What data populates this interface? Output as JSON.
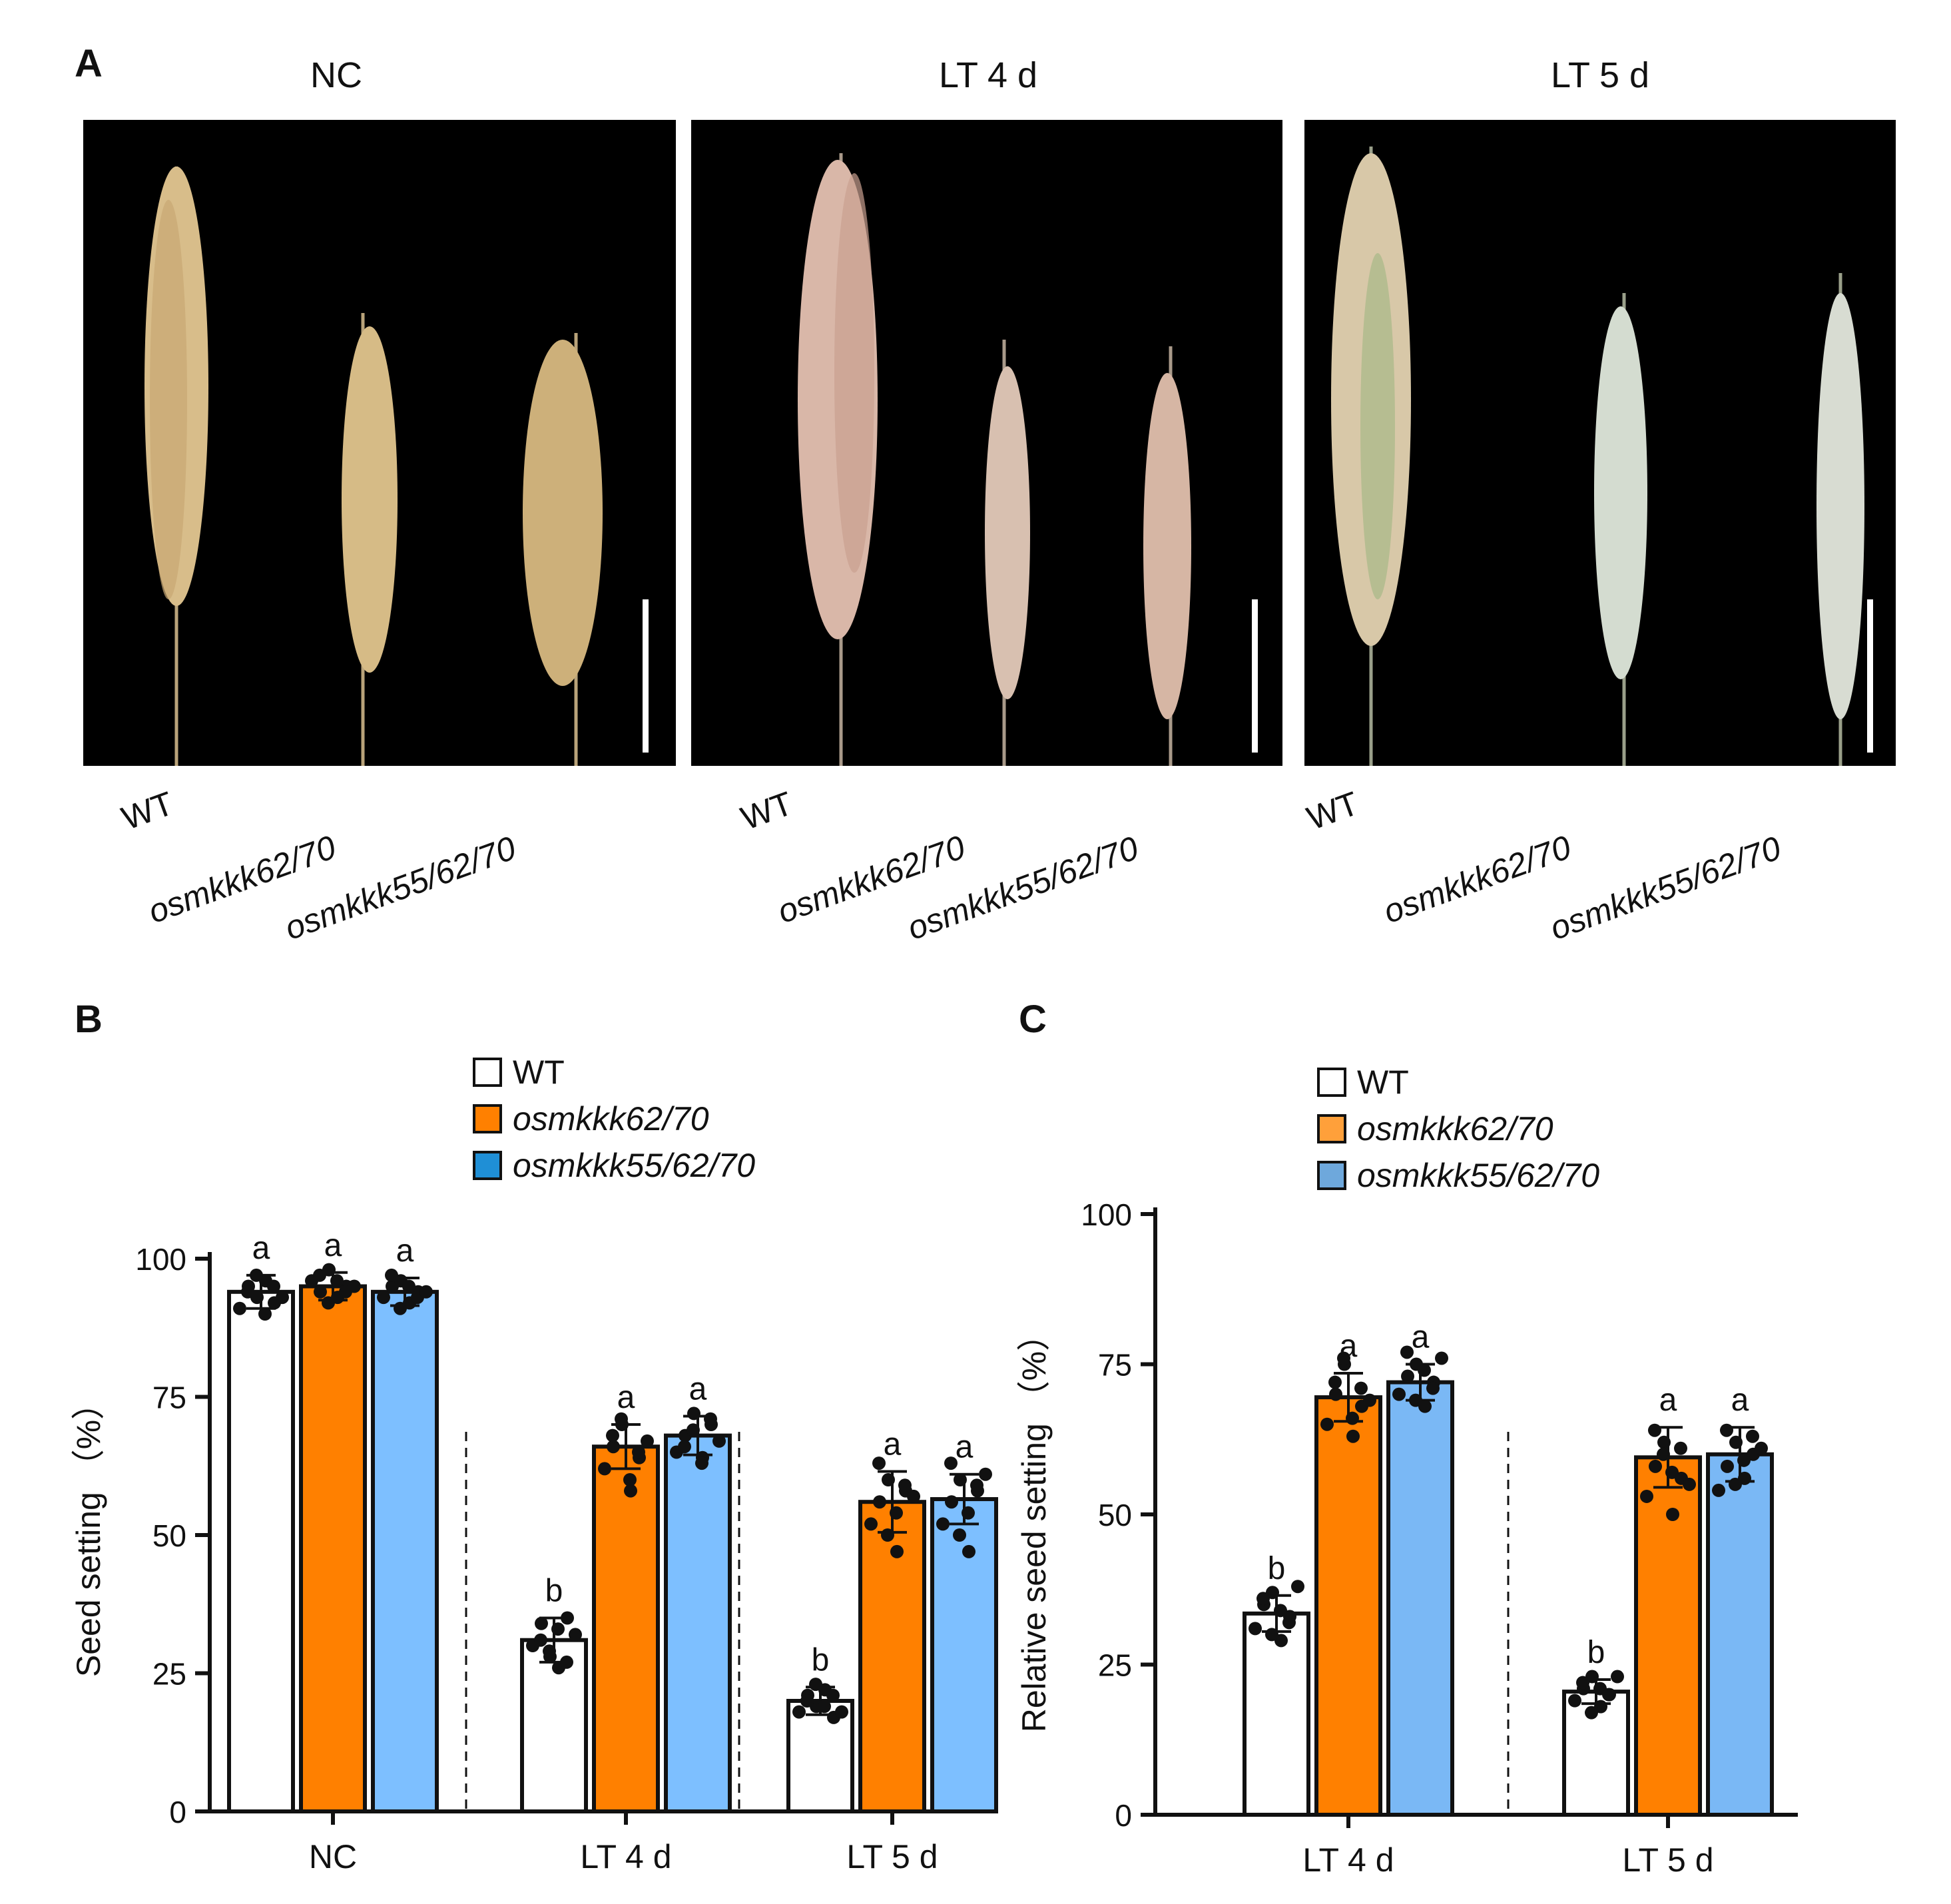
{
  "panel_a": {
    "letter": "A",
    "conditions": [
      "NC",
      "LT 4 d",
      "LT 5 d"
    ],
    "genotype_labels": [
      "WT",
      "osmkkk62/70",
      "osmkkk55/62/70"
    ]
  },
  "panel_b": {
    "letter": "B",
    "legend": [
      "WT",
      "osmkkk62/70",
      "osmkkk55/62/70"
    ]
  },
  "panel_c": {
    "letter": "C",
    "legend": [
      "WT",
      "osmkkk62/70",
      "osmkkk55/62/70"
    ]
  },
  "colors": {
    "wt": "#ffffff",
    "double": "#ff8000",
    "triple_b": "#7dbfff",
    "triple_c": "#7ab8f5",
    "axis": "#111111"
  },
  "chart_data": [
    {
      "type": "bar",
      "panel": "B",
      "ylabel": "Seed setting （%）",
      "ylim": [
        0,
        100
      ],
      "yticks": [
        0,
        25,
        50,
        75,
        100
      ],
      "categories": [
        "NC",
        "LT 4 d",
        "LT 5 d"
      ],
      "series": [
        {
          "name": "WT",
          "values": [
            94,
            31,
            20
          ],
          "sd": [
            3,
            4,
            2.5
          ],
          "letters": [
            "a",
            "b",
            "b"
          ]
        },
        {
          "name": "osmkkk62/70",
          "values": [
            95,
            66,
            56
          ],
          "sd": [
            2.5,
            4,
            5.5
          ],
          "letters": [
            "a",
            "a",
            "a"
          ]
        },
        {
          "name": "osmkkk55/62/70",
          "values": [
            94,
            68,
            56.5
          ],
          "sd": [
            2.5,
            3.5,
            4.5
          ],
          "letters": [
            "a",
            "a",
            "a"
          ]
        }
      ],
      "points": [
        [
          [
            91,
            95,
            93,
            96,
            92,
            94,
            97,
            90,
            95,
            93
          ],
          [
            30,
            34,
            28,
            26,
            35,
            31,
            29,
            33,
            27,
            32
          ],
          [
            18,
            21,
            19,
            22,
            17,
            20,
            23,
            19,
            21,
            18
          ]
        ],
        [
          [
            96,
            94,
            98,
            93,
            95,
            97,
            92,
            96,
            94,
            95
          ],
          [
            62,
            66,
            70,
            58,
            64,
            68,
            71,
            60,
            65,
            67
          ],
          [
            52,
            56,
            60,
            47,
            58,
            63,
            50,
            54,
            59,
            57
          ]
        ],
        [
          [
            93,
            95,
            96,
            92,
            94,
            97,
            91,
            95,
            93,
            94
          ],
          [
            65,
            68,
            72,
            64,
            70,
            66,
            69,
            63,
            71,
            67
          ],
          [
            52,
            56,
            60,
            47,
            58,
            63,
            50,
            54,
            59,
            61
          ]
        ]
      ],
      "grid": false,
      "legend_position": "top-center"
    },
    {
      "type": "bar",
      "panel": "C",
      "ylabel": "Relative seed setting （%）",
      "ylim": [
        0,
        100
      ],
      "yticks": [
        0,
        25,
        50,
        75,
        100
      ],
      "categories": [
        "LT 4 d",
        "LT 5 d"
      ],
      "series": [
        {
          "name": "WT",
          "values": [
            33.5,
            20.5
          ],
          "sd": [
            3,
            2
          ],
          "letters": [
            "b",
            "b"
          ]
        },
        {
          "name": "osmkkk62/70",
          "values": [
            69.5,
            59.5
          ],
          "sd": [
            4,
            5
          ],
          "letters": [
            "a",
            "a"
          ]
        },
        {
          "name": "osmkkk55/62/70",
          "values": [
            72,
            60
          ],
          "sd": [
            3,
            4.5
          ],
          "letters": [
            "a",
            "a"
          ]
        }
      ],
      "points": [
        [
          [
            31,
            35,
            37,
            29,
            33,
            36,
            30,
            34,
            32,
            38
          ],
          [
            19,
            21,
            23,
            18,
            20,
            22,
            17,
            21,
            20,
            23
          ]
        ],
        [
          [
            65,
            70,
            75,
            63,
            68,
            72,
            76,
            66,
            71,
            69
          ],
          [
            53,
            58,
            62,
            50,
            56,
            64,
            60,
            57,
            61,
            55
          ]
        ],
        [
          [
            70,
            73,
            75,
            68,
            72,
            77,
            69,
            74,
            71,
            76
          ],
          [
            54,
            58,
            62,
            56,
            60,
            64,
            55,
            59,
            63,
            61
          ]
        ]
      ],
      "grid": false,
      "legend_position": "top-center"
    }
  ]
}
